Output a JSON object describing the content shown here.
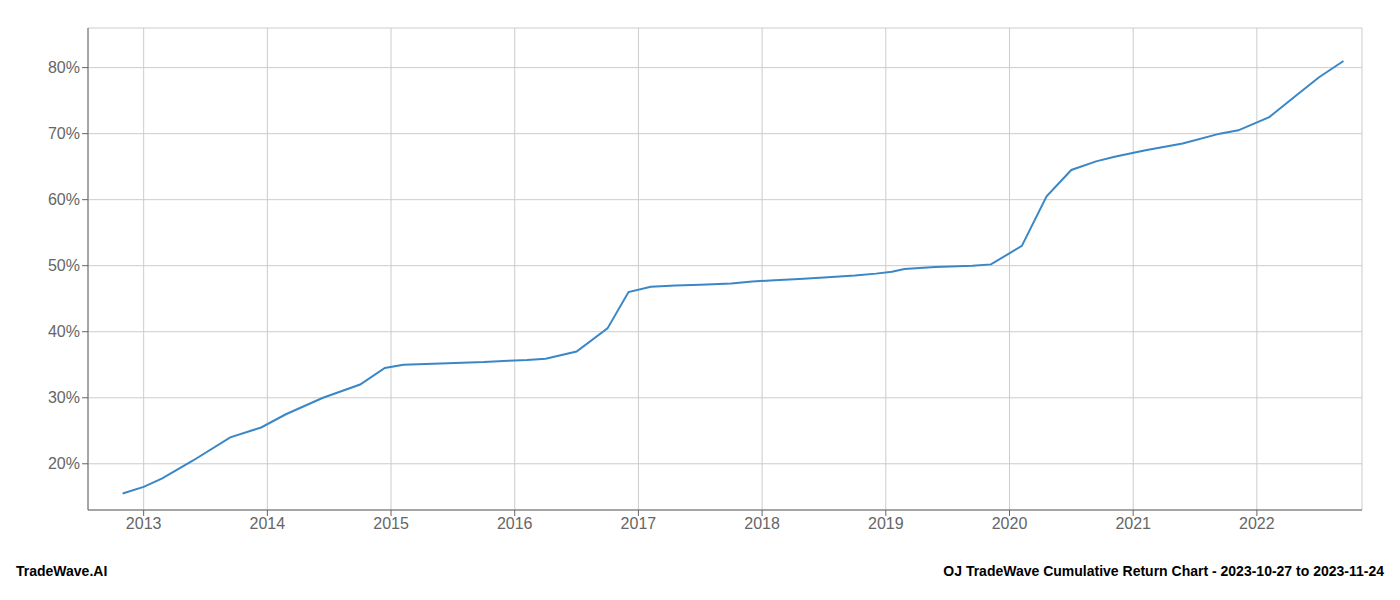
{
  "chart_data": {
    "type": "line",
    "x": [
      2012.83,
      2013.0,
      2013.15,
      2013.4,
      2013.7,
      2013.95,
      2014.15,
      2014.45,
      2014.75,
      2014.95,
      2015.1,
      2015.4,
      2015.75,
      2015.95,
      2016.1,
      2016.25,
      2016.5,
      2016.75,
      2016.92,
      2017.1,
      2017.3,
      2017.5,
      2017.75,
      2017.92,
      2018.1,
      2018.3,
      2018.5,
      2018.75,
      2018.92,
      2019.05,
      2019.15,
      2019.4,
      2019.7,
      2019.85,
      2020.1,
      2020.3,
      2020.5,
      2020.7,
      2020.85,
      2021.1,
      2021.4,
      2021.7,
      2021.85,
      2022.1,
      2022.3,
      2022.5,
      2022.7
    ],
    "values": [
      15.5,
      16.5,
      17.8,
      20.5,
      24.0,
      25.5,
      27.5,
      30.0,
      32.0,
      34.5,
      35.0,
      35.2,
      35.4,
      35.6,
      35.7,
      35.9,
      37.0,
      40.5,
      46.0,
      46.8,
      47.0,
      47.1,
      47.3,
      47.6,
      47.8,
      48.0,
      48.2,
      48.5,
      48.8,
      49.1,
      49.5,
      49.8,
      50.0,
      50.2,
      53.0,
      60.5,
      64.5,
      65.8,
      66.5,
      67.5,
      68.5,
      70.0,
      70.5,
      72.5,
      75.5,
      78.5,
      81.0
    ],
    "color": "#3a87c8",
    "xlim": [
      2012.55,
      2022.85
    ],
    "xticks": [
      2013,
      2014,
      2015,
      2016,
      2017,
      2018,
      2019,
      2020,
      2021,
      2022
    ],
    "ylim": [
      13,
      86
    ],
    "yticks": [
      {
        "value": 20,
        "label": "20%"
      },
      {
        "value": 30,
        "label": "30%"
      },
      {
        "value": 40,
        "label": "40%"
      },
      {
        "value": 50,
        "label": "50%"
      },
      {
        "value": 60,
        "label": "60%"
      },
      {
        "value": 70,
        "label": "70%"
      },
      {
        "value": 80,
        "label": "80%"
      }
    ],
    "grid": true,
    "annotations": [
      "TradeWave.AI",
      "OJ TradeWave Cumulative Return Chart - 2023-10-27 to 2023-11-24"
    ]
  }
}
